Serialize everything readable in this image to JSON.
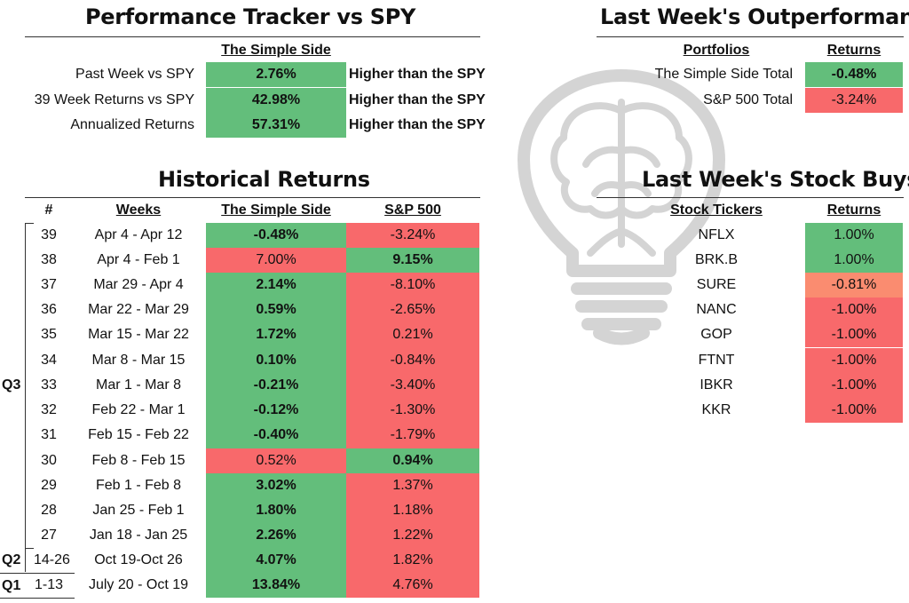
{
  "tracker": {
    "title": "Performance Tracker vs SPY",
    "column_header": "The Simple Side",
    "rows": [
      {
        "label": "Past Week vs SPY",
        "value": "2.76%",
        "note": "Higher than the SPY"
      },
      {
        "label": "39 Week Returns vs SPY",
        "value": "42.98%",
        "note": "Higher than the SPY"
      },
      {
        "label": "Annualized Returns",
        "value": "57.31%",
        "note": "Higher than the SPY"
      }
    ]
  },
  "outperformance": {
    "title": "Last Week's Outperformance",
    "col_portfolios": "Portfolios",
    "col_returns": "Returns",
    "rows": [
      {
        "label": "The Simple Side Total",
        "value": "-0.48%"
      },
      {
        "label": "S&P 500 Total",
        "value": "-3.24%"
      }
    ]
  },
  "historical": {
    "title": "Historical Returns",
    "col_num": "#",
    "col_weeks": "Weeks",
    "col_simple": "The Simple Side",
    "col_sp": "S&P 500",
    "quarters": {
      "q3": "Q3",
      "q2": "Q2",
      "q1": "Q1"
    },
    "rows": [
      {
        "num": "39",
        "weeks": "Apr 4 - Apr 12",
        "simple": "-0.48%",
        "sp": "-3.24%"
      },
      {
        "num": "38",
        "weeks": "Apr 4 - Feb 1",
        "simple": "7.00%",
        "sp": "9.15%"
      },
      {
        "num": "37",
        "weeks": "Mar 29 - Apr 4",
        "simple": "2.14%",
        "sp": "-8.10%"
      },
      {
        "num": "36",
        "weeks": "Mar 22 - Mar 29",
        "simple": "0.59%",
        "sp": "-2.65%"
      },
      {
        "num": "35",
        "weeks": "Mar 15 - Mar 22",
        "simple": "1.72%",
        "sp": "0.21%"
      },
      {
        "num": "34",
        "weeks": "Mar 8 - Mar 15",
        "simple": "0.10%",
        "sp": "-0.84%"
      },
      {
        "num": "33",
        "weeks": "Mar 1 - Mar 8",
        "simple": "-0.21%",
        "sp": "-3.40%"
      },
      {
        "num": "32",
        "weeks": "Feb 22 - Mar 1",
        "simple": "-0.12%",
        "sp": "-1.30%"
      },
      {
        "num": "31",
        "weeks": "Feb 15 - Feb 22",
        "simple": "-0.40%",
        "sp": "-1.79%"
      },
      {
        "num": "30",
        "weeks": "Feb 8 - Feb 15",
        "simple": "0.52%",
        "sp": "0.94%"
      },
      {
        "num": "29",
        "weeks": "Feb 1 - Feb 8",
        "simple": "3.02%",
        "sp": "1.37%"
      },
      {
        "num": "28",
        "weeks": "Jan 25 - Feb 1",
        "simple": "1.80%",
        "sp": "1.18%"
      },
      {
        "num": "27",
        "weeks": "Jan 18 - Jan 25",
        "simple": "2.26%",
        "sp": "1.22%"
      },
      {
        "num": "14-26",
        "weeks": "Oct 19-Oct 26",
        "simple": "4.07%",
        "sp": "1.82%"
      },
      {
        "num": "1-13",
        "weeks": "July 20 - Oct 19",
        "simple": "13.84%",
        "sp": "4.76%"
      }
    ]
  },
  "buys": {
    "title": "Last Week's Stock Buys",
    "col_tickers": "Stock Tickers",
    "col_returns": "Returns",
    "rows": [
      {
        "ticker": "NFLX",
        "value": "1.00%"
      },
      {
        "ticker": "BRK.B",
        "value": "1.00%"
      },
      {
        "ticker": "SURE",
        "value": "-0.81%"
      },
      {
        "ticker": "NANC",
        "value": "-1.00%"
      },
      {
        "ticker": "GOP",
        "value": "-1.00%"
      },
      {
        "ticker": "FTNT",
        "value": "-1.00%"
      },
      {
        "ticker": "IBKR",
        "value": "-1.00%"
      },
      {
        "ticker": "KKR",
        "value": "-1.00%"
      }
    ]
  },
  "colors": {
    "positive": "#63be7b",
    "negative": "#f8696b",
    "mild_negative": "#fa8c70",
    "watermark": "#d6d6d6"
  },
  "icons": {
    "watermark": "lightbulb-brain-icon"
  }
}
